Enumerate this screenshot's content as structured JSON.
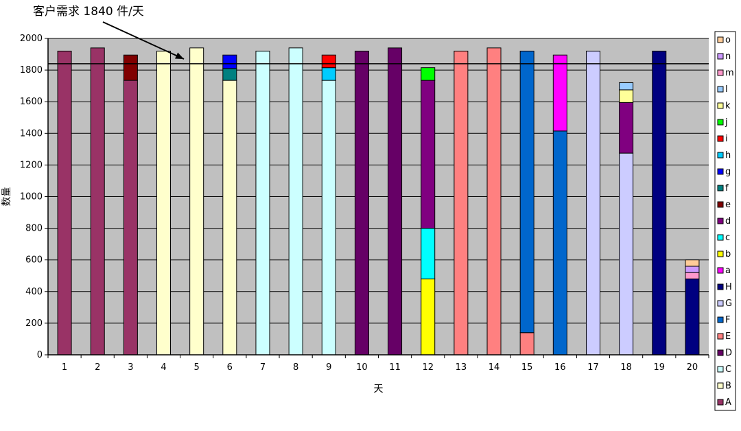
{
  "chart_data": {
    "type": "bar",
    "stacked": true,
    "xlabel": "天",
    "ylabel": "数量",
    "ylim": [
      0,
      2000
    ],
    "yticks": [
      0,
      200,
      400,
      600,
      800,
      1000,
      1200,
      1400,
      1600,
      1800,
      2000
    ],
    "categories": [
      "1",
      "2",
      "3",
      "4",
      "5",
      "6",
      "7",
      "8",
      "9",
      "10",
      "11",
      "12",
      "13",
      "14",
      "15",
      "16",
      "17",
      "18",
      "19",
      "20"
    ],
    "demand_line": 1840,
    "annotation": "客户需求 1840 件/天",
    "grid": true,
    "legend_position": "right",
    "plot_background": "#c0c0c0",
    "series": [
      {
        "name": "A",
        "color": "#993366",
        "values": [
          1920,
          1940,
          1735,
          0,
          0,
          0,
          0,
          0,
          0,
          0,
          0,
          0,
          0,
          0,
          0,
          0,
          0,
          0,
          0,
          0
        ]
      },
      {
        "name": "B",
        "color": "#ffffcc",
        "values": [
          0,
          0,
          0,
          1920,
          1940,
          1735,
          0,
          0,
          0,
          0,
          0,
          0,
          0,
          0,
          0,
          0,
          0,
          0,
          0,
          0
        ]
      },
      {
        "name": "C",
        "color": "#ccffff",
        "values": [
          0,
          0,
          0,
          0,
          0,
          0,
          1920,
          1940,
          1735,
          0,
          0,
          0,
          0,
          0,
          0,
          0,
          0,
          0,
          0,
          0
        ]
      },
      {
        "name": "D",
        "color": "#660066",
        "values": [
          0,
          0,
          0,
          0,
          0,
          0,
          0,
          0,
          0,
          1920,
          1940,
          0,
          0,
          0,
          0,
          0,
          0,
          0,
          0,
          0
        ]
      },
      {
        "name": "E",
        "color": "#ff8080",
        "values": [
          0,
          0,
          0,
          0,
          0,
          0,
          0,
          0,
          0,
          0,
          0,
          0,
          1920,
          1940,
          140,
          0,
          0,
          0,
          0,
          0
        ]
      },
      {
        "name": "F",
        "color": "#0066cc",
        "values": [
          0,
          0,
          0,
          0,
          0,
          0,
          0,
          0,
          0,
          0,
          0,
          0,
          0,
          0,
          1780,
          1415,
          0,
          0,
          0,
          0
        ]
      },
      {
        "name": "G",
        "color": "#ccccff",
        "values": [
          0,
          0,
          0,
          0,
          0,
          0,
          0,
          0,
          0,
          0,
          0,
          0,
          0,
          0,
          0,
          0,
          1920,
          1275,
          0,
          0
        ]
      },
      {
        "name": "H",
        "color": "#000080",
        "values": [
          0,
          0,
          0,
          0,
          0,
          0,
          0,
          0,
          0,
          0,
          0,
          0,
          0,
          0,
          0,
          0,
          0,
          0,
          1920,
          480
        ]
      },
      {
        "name": "a",
        "color": "#ff00ff",
        "values": [
          0,
          0,
          0,
          0,
          0,
          0,
          0,
          0,
          0,
          0,
          0,
          0,
          0,
          0,
          0,
          480,
          0,
          0,
          0,
          0
        ]
      },
      {
        "name": "b",
        "color": "#ffff00",
        "values": [
          0,
          0,
          0,
          0,
          0,
          0,
          0,
          0,
          0,
          0,
          0,
          480,
          0,
          0,
          0,
          0,
          0,
          0,
          0,
          0
        ]
      },
      {
        "name": "c",
        "color": "#00ffff",
        "values": [
          0,
          0,
          0,
          0,
          0,
          0,
          0,
          0,
          0,
          0,
          0,
          320,
          0,
          0,
          0,
          0,
          0,
          0,
          0,
          0
        ]
      },
      {
        "name": "d",
        "color": "#800080",
        "values": [
          0,
          0,
          0,
          0,
          0,
          0,
          0,
          0,
          0,
          0,
          0,
          935,
          0,
          0,
          0,
          0,
          0,
          320,
          0,
          0
        ]
      },
      {
        "name": "e",
        "color": "#800000",
        "values": [
          0,
          0,
          160,
          0,
          0,
          0,
          0,
          0,
          0,
          0,
          0,
          0,
          0,
          0,
          0,
          0,
          0,
          0,
          0,
          0
        ]
      },
      {
        "name": "f",
        "color": "#008080",
        "values": [
          0,
          0,
          0,
          0,
          0,
          75,
          0,
          0,
          0,
          0,
          0,
          0,
          0,
          0,
          0,
          0,
          0,
          0,
          0,
          0
        ]
      },
      {
        "name": "g",
        "color": "#0000ff",
        "values": [
          0,
          0,
          0,
          0,
          0,
          85,
          0,
          0,
          0,
          0,
          0,
          0,
          0,
          0,
          0,
          0,
          0,
          0,
          0,
          0
        ]
      },
      {
        "name": "h",
        "color": "#00ccff",
        "values": [
          0,
          0,
          0,
          0,
          0,
          0,
          0,
          0,
          80,
          0,
          0,
          0,
          0,
          0,
          0,
          0,
          0,
          0,
          0,
          0
        ]
      },
      {
        "name": "i",
        "color": "#ff0000",
        "values": [
          0,
          0,
          0,
          0,
          0,
          0,
          0,
          0,
          80,
          0,
          0,
          0,
          0,
          0,
          0,
          0,
          0,
          0,
          0,
          0
        ]
      },
      {
        "name": "j",
        "color": "#00ff00",
        "values": [
          0,
          0,
          0,
          0,
          0,
          0,
          0,
          0,
          0,
          0,
          0,
          80,
          0,
          0,
          0,
          0,
          0,
          0,
          0,
          0
        ]
      },
      {
        "name": "k",
        "color": "#ffff99",
        "values": [
          0,
          0,
          0,
          0,
          0,
          0,
          0,
          0,
          0,
          0,
          0,
          0,
          0,
          0,
          0,
          0,
          0,
          80,
          0,
          0
        ]
      },
      {
        "name": "l",
        "color": "#99ccff",
        "values": [
          0,
          0,
          0,
          0,
          0,
          0,
          0,
          0,
          0,
          0,
          0,
          0,
          0,
          0,
          0,
          0,
          0,
          45,
          0,
          0
        ]
      },
      {
        "name": "m",
        "color": "#ff99cc",
        "values": [
          0,
          0,
          0,
          0,
          0,
          0,
          0,
          0,
          0,
          0,
          0,
          0,
          0,
          0,
          0,
          0,
          0,
          0,
          0,
          40
        ]
      },
      {
        "name": "n",
        "color": "#cc99ff",
        "values": [
          0,
          0,
          0,
          0,
          0,
          0,
          0,
          0,
          0,
          0,
          0,
          0,
          0,
          0,
          0,
          0,
          0,
          0,
          0,
          40
        ]
      },
      {
        "name": "o",
        "color": "#ffcc99",
        "values": [
          0,
          0,
          0,
          0,
          0,
          0,
          0,
          0,
          0,
          0,
          0,
          0,
          0,
          0,
          0,
          0,
          0,
          0,
          0,
          40
        ]
      }
    ]
  }
}
